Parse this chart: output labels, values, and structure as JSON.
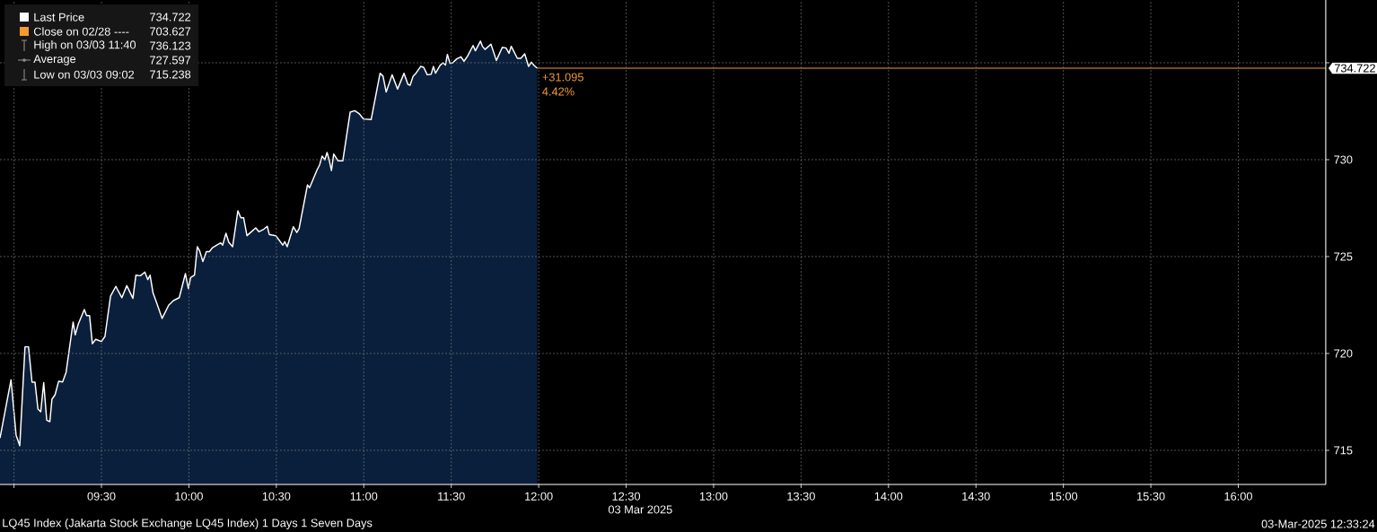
{
  "chart_data": {
    "type": "area",
    "title": "LQ45 Index (Jakarta Stock Exchange LQ45 Index) 1 Days 1 Seven Days",
    "xlabel": "03 Mar 2025",
    "x": [
      8.92,
      8.983,
      9.012,
      9.033,
      9.063,
      9.083,
      9.103,
      9.12,
      9.137,
      9.153,
      9.17,
      9.187,
      9.205,
      9.217,
      9.235,
      9.255,
      9.278,
      9.298,
      9.338,
      9.35,
      9.367,
      9.402,
      9.415,
      9.432,
      9.448,
      9.467,
      9.5,
      9.52,
      9.552,
      9.582,
      9.617,
      9.645,
      9.68,
      9.697,
      9.723,
      9.748,
      9.765,
      9.778,
      9.795,
      9.817,
      9.847,
      9.885,
      9.912,
      9.945,
      9.98,
      9.997,
      10.01,
      10.032,
      10.048,
      10.062,
      10.08,
      10.1,
      10.117,
      10.135,
      10.16,
      10.182,
      10.193,
      10.212,
      10.228,
      10.25,
      10.28,
      10.297,
      10.313,
      10.332,
      10.357,
      10.382,
      10.4,
      10.425,
      10.448,
      10.46,
      10.497,
      10.537,
      10.548,
      10.562,
      10.597,
      10.617,
      10.63,
      10.678,
      10.69,
      10.733,
      10.747,
      10.762,
      10.777,
      10.79,
      10.802,
      10.815,
      10.828,
      10.853,
      10.88,
      10.922,
      10.948,
      10.973,
      10.998,
      11.042,
      11.093,
      11.11,
      11.128,
      11.162,
      11.193,
      11.23,
      11.252,
      11.265,
      11.282,
      11.298,
      11.325,
      11.342,
      11.363,
      11.385,
      11.398,
      11.41,
      11.437,
      11.453,
      11.467,
      11.478,
      11.493,
      11.508,
      11.53,
      11.555,
      11.573,
      11.593,
      11.625,
      11.638,
      11.667,
      11.678,
      11.693,
      11.727,
      11.758,
      11.792,
      11.813,
      11.83,
      11.843,
      11.878,
      11.898,
      11.92,
      11.942,
      11.958,
      11.975,
      11.992
    ],
    "series": [
      {
        "name": "Last Price",
        "color": "#ffffff",
        "values": [
          715.63,
          718.64,
          715.79,
          715.24,
          720.34,
          720.34,
          718.52,
          718.52,
          717.13,
          716.99,
          718.49,
          716.56,
          716.48,
          717.64,
          717.87,
          718.56,
          718.53,
          719.03,
          721.62,
          720.96,
          721.5,
          722.27,
          721.96,
          721.96,
          720.5,
          720.73,
          720.62,
          720.88,
          722.96,
          723.46,
          722.88,
          723.5,
          722.84,
          724.04,
          724.01,
          724.2,
          723.81,
          724.04,
          723.12,
          722.58,
          721.81,
          722.5,
          722.73,
          722.88,
          724.12,
          723.35,
          723.92,
          724.04,
          725.51,
          725.28,
          724.74,
          725.25,
          725.25,
          725.46,
          725.59,
          725.71,
          725.59,
          726.2,
          725.74,
          725.51,
          727.36,
          727.0,
          727.0,
          726.08,
          726.28,
          726.48,
          726.28,
          726.39,
          726.56,
          726.13,
          726.08,
          725.59,
          725.77,
          725.51,
          726.54,
          726.24,
          726.44,
          728.7,
          728.55,
          729.48,
          729.72,
          730.19,
          729.99,
          730.37,
          729.99,
          729.44,
          730.29,
          729.94,
          729.94,
          732.45,
          732.53,
          732.38,
          732.1,
          732.07,
          734.46,
          734.31,
          733.49,
          734.38,
          733.64,
          734.46,
          733.89,
          733.84,
          734.31,
          734.46,
          734.81,
          734.77,
          734.38,
          734.41,
          734.81,
          734.46,
          734.88,
          735.0,
          734.88,
          735.43,
          734.97,
          735.0,
          735.19,
          735.31,
          735.08,
          735.34,
          735.89,
          735.62,
          736.12,
          735.85,
          735.69,
          735.96,
          735.12,
          735.8,
          735.77,
          735.49,
          735.85,
          735.23,
          735.23,
          735.46,
          734.81,
          735.03,
          734.85,
          734.72
        ]
      }
    ],
    "xlim": [
      8.92,
      16.5
    ],
    "xticks": [
      {
        "value": 9,
        "label": null
      },
      {
        "value": 9.5,
        "label": "09:30"
      },
      {
        "value": 10,
        "label": "10:00"
      },
      {
        "value": 10.5,
        "label": "10:30"
      },
      {
        "value": 11,
        "label": "11:00"
      },
      {
        "value": 11.5,
        "label": "11:30"
      },
      {
        "value": 12,
        "label": "12:00"
      },
      {
        "value": 12.5,
        "label": "12:30"
      },
      {
        "value": 13,
        "label": "13:00"
      },
      {
        "value": 13.5,
        "label": "13:30"
      },
      {
        "value": 14,
        "label": "14:00"
      },
      {
        "value": 14.5,
        "label": "14:30"
      },
      {
        "value": 15,
        "label": "15:00"
      },
      {
        "value": 15.5,
        "label": "15:30"
      },
      {
        "value": 16,
        "label": "16:00"
      }
    ],
    "ylim": [
      713.24,
      738.24
    ],
    "yticks": [
      715,
      720,
      725,
      730,
      {
        "value": 735,
        "label": null
      }
    ],
    "grid": true,
    "legend": "top left",
    "ref_lines": [
      {
        "axis": "y",
        "value": 734.722,
        "label": "734.722",
        "color": "#f39b2e"
      }
    ],
    "annotations": [
      "734.722",
      "Close on 02/28 ----",
      "703.627",
      "High on 03/03 11:40",
      "736.123",
      "Average",
      "727.597",
      "Low on 03/03 09:02",
      "715.238",
      "+31.095",
      "4.42%",
      "03-Mar-2025 12:33:24"
    ]
  }
}
